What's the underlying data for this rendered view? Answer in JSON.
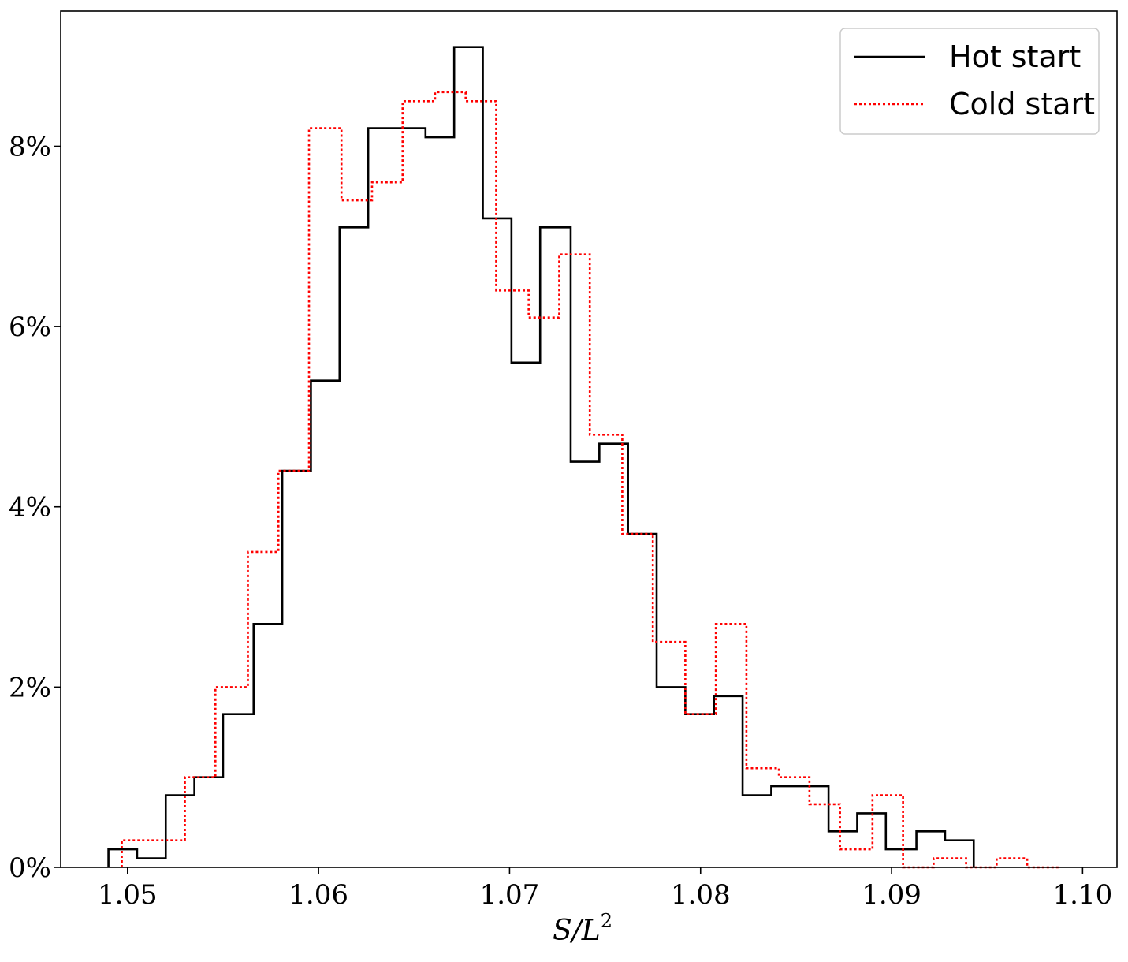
{
  "chart_data": {
    "type": "histogram-step",
    "title": "",
    "xlabel": "S/L",
    "xlabel_superscript": "2",
    "ylabel": "",
    "xlim": [
      1.0465,
      1.1018
    ],
    "ylim": [
      0,
      9.5
    ],
    "x_ticks": [
      1.05,
      1.06,
      1.07,
      1.08,
      1.09,
      1.1
    ],
    "x_tick_labels": [
      "1.05",
      "1.06",
      "1.07",
      "1.08",
      "1.09",
      "1.10"
    ],
    "y_ticks": [
      0,
      2,
      4,
      6,
      8
    ],
    "y_tick_labels": [
      "0%",
      "2%",
      "4%",
      "6%",
      "8%"
    ],
    "grid": false,
    "legend_position": "top-right",
    "series": [
      {
        "name": "Hot start",
        "color": "#000000",
        "style": "solid",
        "edges": [
          1.049,
          1.0505,
          1.052,
          1.0535,
          1.055,
          1.0566,
          1.0581,
          1.0596,
          1.0611,
          1.0626,
          1.0641,
          1.0656,
          1.0671,
          1.0686,
          1.0701,
          1.0716,
          1.0732,
          1.0747,
          1.0762,
          1.0777,
          1.0792,
          1.0807,
          1.0822,
          1.0837,
          1.0852,
          1.0867,
          1.0882,
          1.0897,
          1.0913,
          1.0928,
          1.0943
        ],
        "values": [
          0.2,
          0.1,
          0.8,
          1.0,
          1.7,
          2.7,
          4.4,
          5.4,
          7.1,
          8.2,
          8.2,
          8.1,
          9.1,
          7.2,
          5.6,
          7.1,
          4.5,
          4.7,
          3.7,
          2.0,
          1.7,
          1.9,
          0.8,
          0.9,
          0.9,
          0.4,
          0.6,
          0.2,
          0.4,
          0.3
        ]
      },
      {
        "name": "Cold start",
        "color": "#ff0000",
        "style": "dotted",
        "edges": [
          1.0497,
          1.0513,
          1.053,
          1.0546,
          1.0563,
          1.0579,
          1.0595,
          1.0612,
          1.0628,
          1.0644,
          1.0661,
          1.0677,
          1.0693,
          1.071,
          1.0726,
          1.0742,
          1.0759,
          1.0775,
          1.0792,
          1.0808,
          1.0824,
          1.0841,
          1.0857,
          1.0873,
          1.089,
          1.0906,
          1.0922,
          1.0939,
          1.0955,
          1.0971,
          1.0988
        ],
        "values": [
          0.3,
          0.3,
          1.0,
          2.0,
          3.5,
          4.4,
          8.2,
          7.4,
          7.6,
          8.5,
          8.6,
          8.5,
          6.4,
          6.1,
          6.8,
          4.8,
          3.7,
          2.5,
          1.7,
          2.7,
          1.1,
          1.0,
          0.7,
          0.2,
          0.8,
          0.0,
          0.1,
          0.0,
          0.1,
          0.0
        ]
      }
    ]
  }
}
